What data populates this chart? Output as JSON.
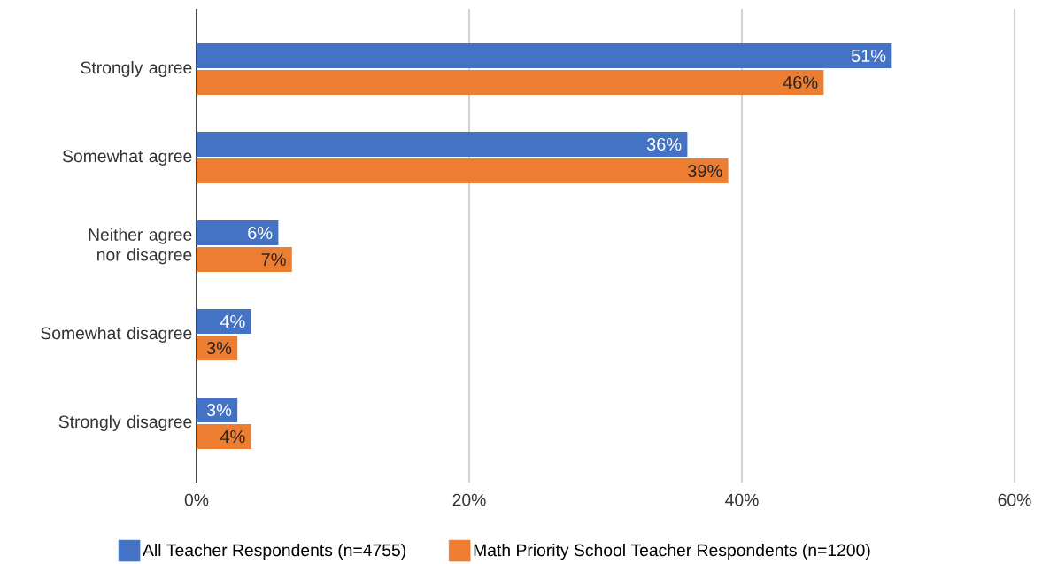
{
  "chart_data": {
    "type": "bar",
    "orientation": "horizontal",
    "categories": [
      "Strongly agree",
      "Somewhat agree",
      "Neither agree nor disagree",
      "Somewhat disagree",
      "Strongly disagree"
    ],
    "series": [
      {
        "name": "All Teacher Respondents (n=4755)",
        "color": "#4472c4",
        "values": [
          51,
          36,
          6,
          4,
          3
        ],
        "value_labels": [
          "51%",
          "36%",
          "6%",
          "4%",
          "3%"
        ]
      },
      {
        "name": "Math Priority School Teacher Respondents (n=1200)",
        "color": "#ed7d31",
        "values": [
          46,
          39,
          7,
          3,
          4
        ],
        "value_labels": [
          "46%",
          "39%",
          "7%",
          "3%",
          "4%"
        ]
      }
    ],
    "xlim": [
      0,
      60
    ],
    "xticks": [
      {
        "value": 0,
        "label": "0%"
      },
      {
        "value": 20,
        "label": "20%"
      },
      {
        "value": 40,
        "label": "40%"
      },
      {
        "value": 60,
        "label": "60%"
      }
    ],
    "grid": "x",
    "legend": "bottom"
  }
}
